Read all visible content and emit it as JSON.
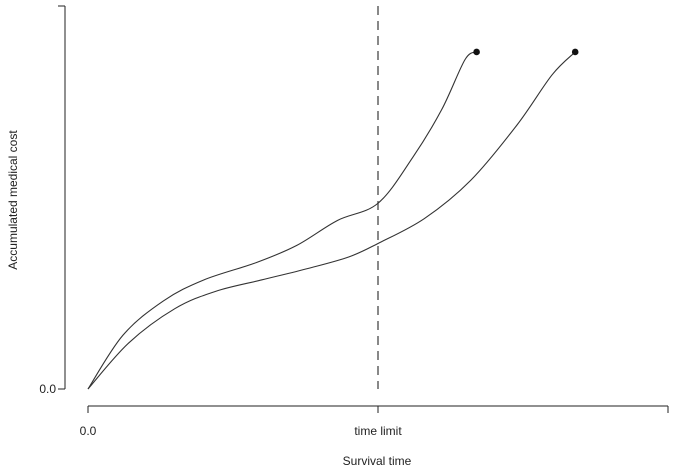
{
  "chart_data": {
    "type": "line",
    "title": "",
    "xlabel": "Survival time",
    "ylabel": "Accumulated medical cost",
    "xlim": [
      0,
      10
    ],
    "ylim": [
      0,
      10
    ],
    "x_ticks": [
      {
        "value": 0,
        "label": "0.0"
      },
      {
        "value": 5,
        "label": "time limit"
      }
    ],
    "y_ticks": [
      {
        "value": 0,
        "label": "0.0"
      }
    ],
    "reference_line": {
      "type": "vertical",
      "x": 5,
      "style": "dashed"
    },
    "series": [
      {
        "x": [
          0,
          0.6,
          1.3,
          2.0,
          2.9,
          3.6,
          4.3,
          5.0,
          5.6,
          6.1,
          6.5,
          6.7
        ],
        "y": [
          0,
          1.4,
          2.3,
          2.85,
          3.3,
          3.75,
          4.4,
          4.85,
          6.05,
          7.3,
          8.6,
          8.8
        ],
        "endpoint": true
      },
      {
        "x": [
          0,
          0.7,
          1.5,
          2.2,
          3.0,
          3.8,
          4.5,
          5.0,
          5.8,
          6.6,
          7.4,
          8.0,
          8.4
        ],
        "y": [
          0,
          1.2,
          2.1,
          2.55,
          2.85,
          3.15,
          3.45,
          3.8,
          4.45,
          5.45,
          6.9,
          8.2,
          8.8
        ],
        "endpoint": true
      }
    ]
  }
}
